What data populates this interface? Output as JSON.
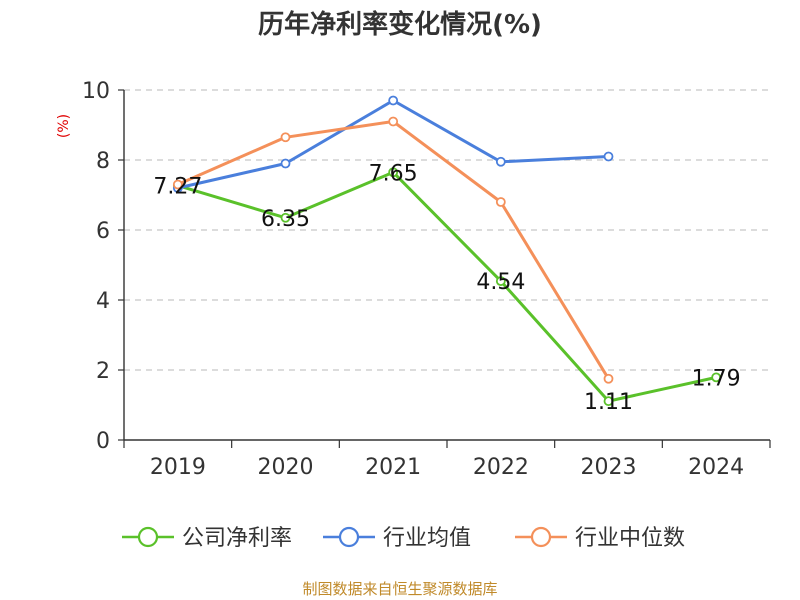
{
  "chart_data": {
    "type": "line",
    "title": "历年净利率变化情况(%)",
    "ylabel": "(%)",
    "xlabel": "",
    "categories": [
      "2019",
      "2020",
      "2021",
      "2022",
      "2023",
      "2024"
    ],
    "ylim": [
      0,
      10
    ],
    "yticks": [
      0,
      2,
      4,
      6,
      8,
      10
    ],
    "grid": true,
    "legend_position": "bottom",
    "series": [
      {
        "name": "公司净利率",
        "color": "#5ac12a",
        "values": [
          7.27,
          6.35,
          7.65,
          4.54,
          1.11,
          1.79
        ],
        "labels": [
          "7.27",
          "6.35",
          "7.65",
          "4.54",
          "1.11",
          "1.79"
        ]
      },
      {
        "name": "行业均值",
        "color": "#4a7fdc",
        "values": [
          7.2,
          7.9,
          9.7,
          7.95,
          8.1,
          null
        ]
      },
      {
        "name": "行业中位数",
        "color": "#f4905a",
        "values": [
          7.3,
          8.65,
          9.1,
          6.8,
          1.75,
          null
        ]
      }
    ]
  },
  "source": "制图数据来自恒生聚源数据库"
}
